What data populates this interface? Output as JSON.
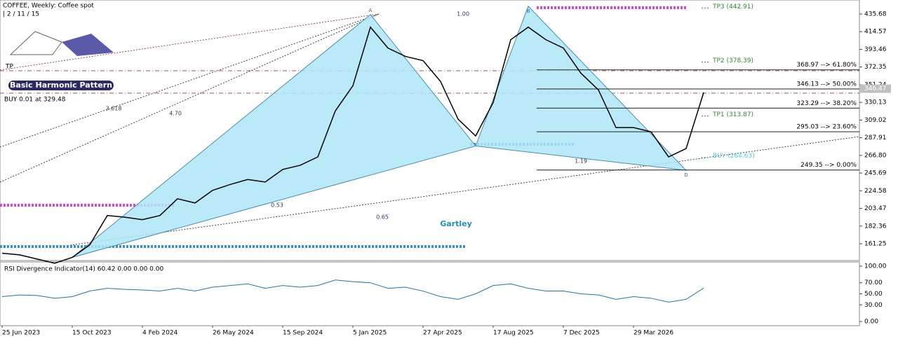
{
  "chart_data": {
    "type": "line",
    "title": "COFFEE, Weekly:  Coffee spot",
    "subtitle": "| 2 / 11 / 15",
    "categories": [
      "25 Jun 2023",
      null,
      null,
      null,
      "15 Oct 2023",
      null,
      null,
      null,
      "4 Feb 2024",
      null,
      null,
      null,
      "26 May 2024",
      null,
      null,
      null,
      "15 Sep 2024",
      null,
      null,
      null,
      "5 Jan 2025",
      null,
      null,
      null,
      "27 Apr 2025",
      null,
      null,
      null,
      "17 Aug 2025",
      null,
      null,
      null,
      "7 Dec 2025",
      null,
      null,
      null,
      "29 Mar 2026",
      null,
      null,
      null,
      null
    ],
    "series": [
      {
        "name": "COFFEE",
        "color": "#000000",
        "values": [
          150,
          148,
          143,
          138,
          145,
          160,
          195,
          193,
          190,
          195,
          215,
          210,
          225,
          232,
          238,
          235,
          250,
          255,
          265,
          320,
          350,
          420,
          395,
          385,
          380,
          355,
          310,
          290,
          330,
          405,
          420,
          405,
          395,
          365,
          345,
          300,
          300,
          295,
          265,
          275,
          342
        ]
      }
    ],
    "pattern": {
      "color": "#aee6f7",
      "values": [
        null,
        null,
        null,
        null,
        145,
        null,
        null,
        null,
        null,
        null,
        null,
        null,
        null,
        null,
        null,
        null,
        null,
        null,
        null,
        null,
        null,
        435,
        null,
        null,
        null,
        null,
        null,
        278,
        null,
        null,
        445,
        null,
        null,
        null,
        null,
        null,
        null,
        null,
        null,
        249,
        null
      ],
      "labels": [
        "A",
        "B",
        "D"
      ],
      "name": "Gartley"
    },
    "ratios": [
      "3.618",
      "4.70",
      "0.53",
      "0.65",
      "1.19",
      "1.00"
    ],
    "ylim": [
      141.2,
      452.4
    ],
    "yticks": [
      {
        "value": 435.68,
        "label": "435.68"
      },
      {
        "value": 414.57,
        "label": "414.57"
      },
      {
        "value": 393.46,
        "label": "393.46"
      },
      {
        "value": 372.35,
        "label": "372.35"
      },
      {
        "value": 351.24,
        "label": "351.24"
      },
      {
        "value": 330.13,
        "label": "330.13"
      },
      {
        "value": 309.02,
        "label": "309.02"
      },
      {
        "value": 287.91,
        "label": "287.91"
      },
      {
        "value": 266.8,
        "label": "266.80"
      },
      {
        "value": 245.69,
        "label": "245.69"
      },
      {
        "value": 224.58,
        "label": "224.58"
      },
      {
        "value": 203.47,
        "label": "203.47"
      },
      {
        "value": 182.36,
        "label": "182.36"
      },
      {
        "value": 161.25,
        "label": "161.25"
      }
    ],
    "current_price": 346.47,
    "fib_levels": [
      {
        "value": 368.97,
        "label": "368.97 --> 61.80%"
      },
      {
        "value": 346.13,
        "label": "346.13 --> 50.00%"
      },
      {
        "value": 323.29,
        "label": "323.29 --> 38.20%"
      },
      {
        "value": 295.03,
        "label": "295.03 --> 23.60%"
      },
      {
        "value": 249.35,
        "label": "249.35 --> 0.00%"
      }
    ],
    "targets": [
      {
        "value": 442.91,
        "label": "TP3 (442.91)",
        "color": "#2e8b2e"
      },
      {
        "value": 378.39,
        "label": "TP2 (378.39)",
        "color": "#2e8b2e"
      },
      {
        "value": 313.87,
        "label": "TP1 (313.87)",
        "color": "#2e8b2e"
      },
      {
        "value": 264.63,
        "label": "BUY (264.63)",
        "color": "#4fc3f7"
      }
    ],
    "tp_label": "TP",
    "logo": "Basic Harmonic Pattern",
    "order": "BUY 0.01 at 329.48",
    "rsi": {
      "title": "RSI Divergence Indicator(14) 60.42 0.00 0.00 0.00",
      "color": "#1e73be",
      "values": [
        45,
        48,
        47,
        42,
        45,
        55,
        60,
        58,
        57,
        55,
        60,
        55,
        62,
        65,
        68,
        60,
        65,
        62,
        65,
        75,
        72,
        70,
        60,
        62,
        55,
        45,
        40,
        50,
        65,
        68,
        60,
        55,
        55,
        50,
        48,
        40,
        45,
        42,
        35,
        40,
        60.42
      ],
      "ylim": [
        -7.6,
        107.6
      ],
      "yticks": [
        {
          "value": 100,
          "label": "100.00"
        },
        {
          "value": 70,
          "label": "70.00"
        },
        {
          "value": 50,
          "label": "50.00"
        },
        {
          "value": 30,
          "label": "30.00"
        },
        {
          "value": 0,
          "label": "0.00"
        }
      ]
    }
  }
}
